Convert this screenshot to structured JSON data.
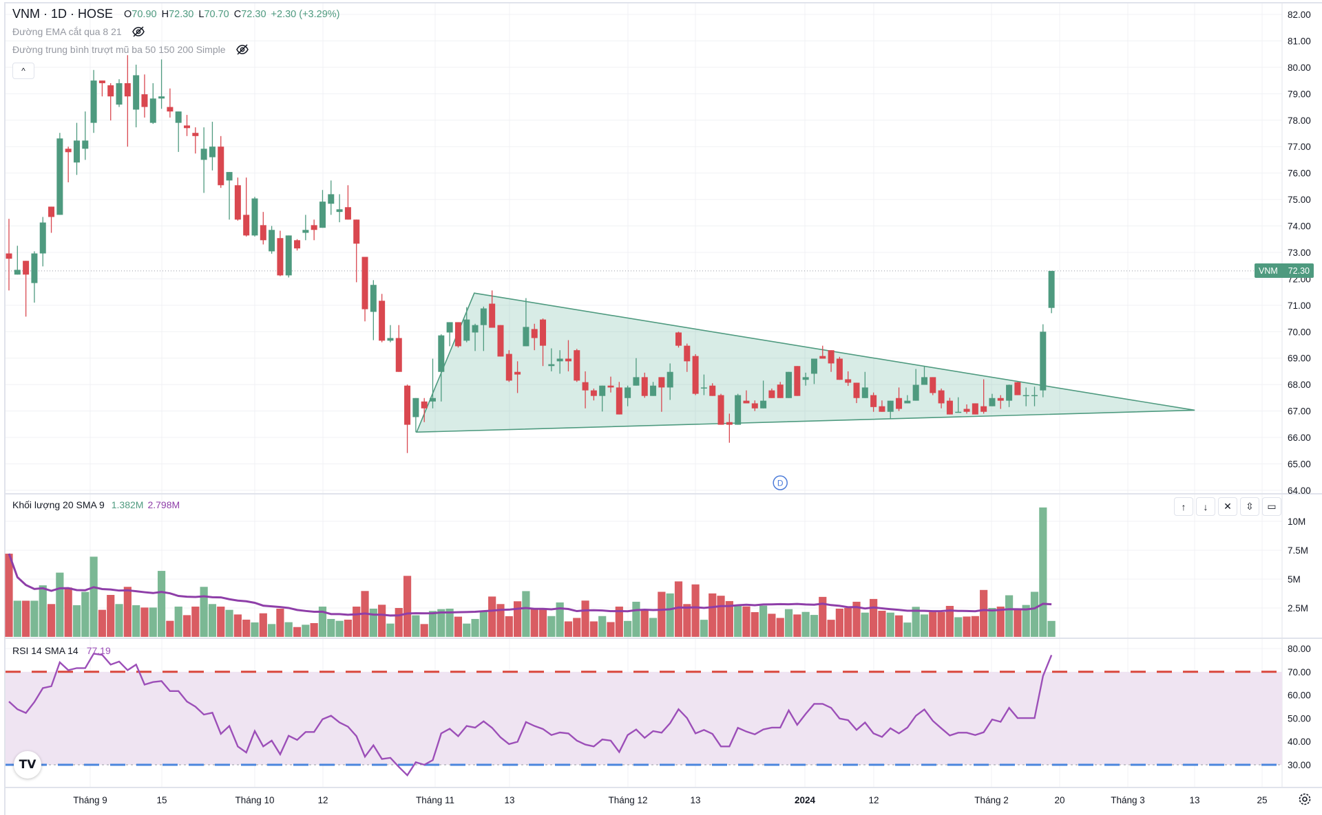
{
  "header": {
    "symbol_title": "VNM · 1D · HOSE",
    "ohlc": [
      {
        "key": "O",
        "value": "70.90"
      },
      {
        "key": "H",
        "value": "72.30"
      },
      {
        "key": "L",
        "value": "70.70"
      },
      {
        "key": "C",
        "value": "72.30"
      }
    ],
    "change": "+2.30 (+3.29%)",
    "indicators": [
      {
        "label": "Đường EMA cắt qua 8 21",
        "icon": "eye-off-icon"
      },
      {
        "label": "Đường trung bình trượt mũ ba 50 150 200 Simple",
        "icon": "eye-off-icon"
      }
    ],
    "collapse_icon": "^"
  },
  "last_price": {
    "symbol": "VNM",
    "value": "72.30"
  },
  "volume_pane": {
    "label": "Khối lượng 20 SMA 9",
    "value": "1.382M",
    "sma_value": "2.798M",
    "buttons": [
      {
        "name": "move-up",
        "glyph": "↑"
      },
      {
        "name": "move-down",
        "glyph": "↓"
      },
      {
        "name": "close",
        "glyph": "✕"
      },
      {
        "name": "collapse",
        "glyph": "⇳"
      },
      {
        "name": "maximize",
        "glyph": "▭"
      }
    ]
  },
  "rsi_pane": {
    "label": "RSI 14 SMA 14",
    "value": "77.19"
  },
  "dividend_marker": "D",
  "logo": "TV",
  "colors": {
    "up": "#4e9a7f",
    "down": "#d9474f",
    "vol_up": "#7bb894",
    "vol_down": "#d95c62",
    "sma": "#8e3ea8",
    "rsi": "#9c4fb8",
    "rsi_band": "#efe4f2",
    "rsi_upper": "#d9473c",
    "rsi_lower": "#4b86dd",
    "triangle_fill": "rgba(78,170,140,0.22)",
    "triangle_stroke": "#4e9a7f"
  },
  "chart_data": {
    "type": "candlestick",
    "symbol": "VNM",
    "interval": "1D",
    "exchange": "HOSE",
    "price_axis": {
      "ticks": [
        "82.00",
        "81.00",
        "80.00",
        "79.00",
        "78.00",
        "77.00",
        "76.00",
        "75.00",
        "74.00",
        "73.00",
        "72.00",
        "71.00",
        "70.00",
        "69.00",
        "68.00",
        "67.00",
        "66.00",
        "65.00",
        "64.00"
      ],
      "ylim": [
        64,
        82
      ]
    },
    "volume_axis": {
      "ticks": [
        "10M",
        "7.5M",
        "5M",
        "2.5M"
      ]
    },
    "rsi_axis": {
      "ticks": [
        "80.00",
        "70.00",
        "60.00",
        "50.00",
        "40.00",
        "30.00"
      ],
      "upper_band": 70,
      "lower_band": 30
    },
    "time_axis": [
      "Tháng 9",
      "15",
      "Tháng 10",
      "12",
      "Tháng 11",
      "13",
      "Tháng 12",
      "13",
      "2024",
      "12",
      "Tháng 2",
      "20",
      "Tháng 3",
      "13",
      "25"
    ],
    "grid": true,
    "ohlc": [
      [
        72.96,
        74.27,
        71.56,
        72.76
      ],
      [
        72.16,
        73.25,
        72.16,
        72.34
      ],
      [
        72.68,
        72.68,
        70.57,
        72.16
      ],
      [
        71.84,
        73.04,
        71.1,
        72.96
      ],
      [
        72.96,
        74.34,
        72.47,
        74.13
      ],
      [
        74.73,
        74.73,
        73.74,
        74.34
      ],
      [
        74.42,
        77.52,
        74.42,
        77.31
      ],
      [
        76.92,
        77.0,
        75.65,
        76.79
      ],
      [
        76.4,
        77.9,
        75.93,
        77.23
      ],
      [
        76.92,
        78.33,
        76.5,
        77.23
      ],
      [
        77.9,
        79.9,
        77.52,
        79.5
      ],
      [
        79.5,
        79.5,
        78.9,
        79.4
      ],
      [
        79.32,
        79.4,
        77.99,
        78.9
      ],
      [
        78.59,
        79.55,
        78.5,
        79.4
      ],
      [
        79.4,
        80.46,
        77.0,
        78.9
      ],
      [
        78.4,
        80.1,
        77.73,
        79.7
      ],
      [
        78.98,
        79.73,
        78.1,
        78.5
      ],
      [
        77.9,
        79.4,
        77.86,
        78.82
      ],
      [
        78.82,
        80.3,
        78.43,
        78.9
      ],
      [
        78.5,
        79.2,
        78.1,
        78.33
      ],
      [
        77.9,
        78.33,
        76.8,
        78.33
      ],
      [
        77.8,
        78.2,
        77.4,
        77.7
      ],
      [
        77.52,
        77.73,
        76.74,
        77.4
      ],
      [
        76.5,
        77.73,
        75.25,
        76.92
      ],
      [
        76.6,
        77.94,
        76.1,
        77.0
      ],
      [
        77.0,
        77.4,
        75.44,
        75.54
      ],
      [
        75.72,
        76.04,
        74.24,
        76.04
      ],
      [
        75.54,
        75.83,
        74.2,
        74.24
      ],
      [
        74.42,
        75.83,
        73.6,
        73.64
      ],
      [
        73.64,
        75.1,
        73.6,
        75.04
      ],
      [
        74.03,
        74.53,
        73.3,
        73.46
      ],
      [
        73.04,
        74.0,
        72.95,
        73.85
      ],
      [
        73.54,
        73.82,
        72.1,
        72.13
      ],
      [
        72.13,
        73.64,
        72.05,
        73.64
      ],
      [
        73.46,
        73.5,
        73.07,
        73.15
      ],
      [
        73.74,
        74.42,
        73.46,
        73.85
      ],
      [
        74.03,
        74.24,
        73.46,
        73.85
      ],
      [
        73.93,
        75.36,
        73.93,
        74.92
      ],
      [
        74.84,
        75.72,
        74.42,
        75.2
      ],
      [
        74.53,
        75.2,
        74.14,
        74.63
      ],
      [
        74.71,
        75.54,
        74.24,
        74.24
      ],
      [
        74.24,
        74.24,
        71.87,
        73.33
      ],
      [
        72.83,
        72.83,
        70.39,
        70.85
      ],
      [
        70.75,
        71.95,
        69.68,
        71.77
      ],
      [
        71.17,
        71.43,
        69.6,
        69.66
      ],
      [
        69.66,
        70.25,
        69.6,
        69.76
      ],
      [
        69.76,
        70.25,
        68.48,
        68.48
      ],
      [
        67.96,
        68.0,
        65.41,
        66.48
      ],
      [
        66.77,
        67.49,
        66.2,
        67.49
      ],
      [
        67.36,
        67.49,
        66.58,
        67.1
      ],
      [
        67.36,
        68.98,
        67.1,
        67.49
      ],
      [
        68.48,
        69.9,
        67.36,
        69.86
      ],
      [
        69.97,
        70.36,
        69.45,
        70.36
      ],
      [
        70.36,
        70.36,
        69.4,
        69.45
      ],
      [
        69.66,
        70.93,
        69.6,
        70.46
      ],
      [
        69.97,
        70.3,
        69.27,
        70.25
      ],
      [
        70.25,
        70.95,
        69.27,
        70.88
      ],
      [
        71.06,
        71.56,
        70.15,
        70.15
      ],
      [
        70.25,
        70.25,
        69.06,
        69.06
      ],
      [
        69.16,
        69.3,
        68.1,
        68.15
      ],
      [
        68.48,
        68.88,
        67.68,
        68.38
      ],
      [
        69.45,
        71.27,
        69.45,
        70.18
      ],
      [
        70.1,
        70.3,
        69.3,
        69.76
      ],
      [
        70.46,
        70.5,
        68.7,
        69.47
      ],
      [
        68.7,
        69.37,
        68.5,
        68.77
      ],
      [
        68.88,
        69.3,
        68.41,
        68.98
      ],
      [
        68.98,
        69.68,
        68.5,
        68.88
      ],
      [
        69.3,
        69.35,
        68.1,
        68.15
      ],
      [
        68.09,
        68.5,
        67.1,
        67.78
      ],
      [
        67.78,
        67.85,
        67.4,
        67.57
      ],
      [
        67.57,
        67.96,
        66.98,
        67.96
      ],
      [
        67.96,
        68.3,
        67.7,
        67.89
      ],
      [
        67.89,
        68.1,
        66.87,
        66.87
      ],
      [
        67.49,
        67.96,
        67.18,
        67.89
      ],
      [
        67.96,
        69.0,
        67.96,
        68.28
      ],
      [
        68.28,
        68.45,
        67.5,
        67.57
      ],
      [
        67.57,
        68.1,
        67.57,
        67.96
      ],
      [
        68.28,
        68.28,
        66.97,
        67.89
      ],
      [
        67.89,
        68.8,
        67.42,
        68.48
      ],
      [
        69.97,
        70.0,
        69.4,
        69.47
      ],
      [
        69.47,
        69.55,
        68.48,
        68.88
      ],
      [
        69.08,
        69.15,
        67.6,
        67.65
      ],
      [
        67.86,
        68.38,
        67.6,
        67.89
      ],
      [
        67.96,
        68.05,
        67.57,
        67.57
      ],
      [
        67.6,
        67.65,
        66.48,
        66.48
      ],
      [
        66.58,
        66.9,
        65.8,
        66.48
      ],
      [
        66.48,
        67.65,
        66.48,
        67.6
      ],
      [
        67.39,
        67.78,
        67.29,
        67.29
      ],
      [
        67.29,
        67.4,
        67.0,
        67.1
      ],
      [
        67.1,
        68.15,
        67.1,
        67.39
      ],
      [
        67.78,
        67.85,
        67.49,
        67.49
      ],
      [
        68.0,
        68.1,
        67.49,
        67.49
      ],
      [
        67.49,
        68.48,
        67.49,
        68.48
      ],
      [
        68.7,
        68.7,
        67.57,
        67.57
      ],
      [
        68.18,
        68.45,
        67.96,
        68.28
      ],
      [
        68.41,
        68.98,
        68.02,
        68.98
      ],
      [
        69.08,
        69.47,
        68.98,
        68.98
      ],
      [
        69.3,
        69.3,
        68.48,
        68.8
      ],
      [
        68.98,
        69.05,
        68.18,
        68.18
      ],
      [
        68.2,
        68.5,
        67.95,
        68.07
      ],
      [
        68.07,
        68.07,
        67.3,
        67.49
      ],
      [
        67.49,
        68.48,
        67.49,
        67.89
      ],
      [
        67.6,
        67.7,
        66.97,
        67.15
      ],
      [
        67.18,
        67.4,
        66.97,
        66.97
      ],
      [
        66.97,
        67.39,
        66.7,
        67.39
      ],
      [
        67.49,
        67.89,
        67.0,
        67.08
      ],
      [
        67.29,
        67.6,
        67.29,
        67.39
      ],
      [
        67.39,
        68.59,
        67.39,
        67.99
      ],
      [
        67.99,
        68.69,
        67.99,
        68.28
      ],
      [
        68.28,
        68.28,
        67.6,
        67.68
      ],
      [
        67.78,
        67.85,
        67.1,
        67.29
      ],
      [
        67.39,
        67.5,
        66.87,
        66.87
      ],
      [
        66.95,
        67.52,
        66.95,
        66.97
      ],
      [
        67.08,
        67.25,
        66.9,
        66.97
      ],
      [
        67.29,
        67.29,
        66.87,
        66.87
      ],
      [
        67.18,
        68.2,
        66.9,
        66.97
      ],
      [
        67.18,
        67.65,
        67.18,
        67.49
      ],
      [
        67.49,
        67.6,
        67.08,
        67.39
      ],
      [
        67.39,
        68.0,
        67.15,
        67.99
      ],
      [
        68.09,
        68.1,
        67.6,
        67.6
      ],
      [
        67.6,
        67.89,
        67.18,
        67.6
      ],
      [
        67.6,
        67.92,
        67.18,
        67.6
      ],
      [
        67.78,
        70.28,
        67.52,
        70.0
      ],
      [
        70.9,
        72.3,
        70.7,
        72.3
      ]
    ],
    "volume_millions": [
      7.2,
      3.13,
      3.13,
      3.13,
      4.46,
      2.84,
      5.56,
      4.27,
      2.74,
      3.89,
      6.94,
      2.34,
      3.63,
      2.84,
      4.33,
      2.74,
      2.54,
      2.54,
      5.71,
      1.39,
      2.62,
      1.88,
      2.62,
      4.33,
      2.84,
      2.62,
      2.34,
      1.94,
      1.49,
      1.25,
      2.04,
      1.11,
      2.44,
      1.27,
      0.85,
      1.05,
      1.19,
      2.62,
      1.55,
      1.39,
      1.49,
      2.62,
      3.97,
      2.44,
      2.78,
      1.15,
      2.5,
      5.28,
      1.87,
      1.11,
      2.24,
      2.4,
      2.44,
      1.75,
      1.15,
      1.55,
      2.24,
      3.49,
      2.84,
      1.79,
      3.08,
      3.96,
      2.46,
      2.46,
      1.8,
      2.98,
      1.34,
      1.64,
      3.14,
      1.34,
      1.8,
      1.28,
      2.62,
      1.38,
      3.04,
      2.4,
      1.64,
      3.9,
      3.76,
      4.8,
      2.84,
      4.54,
      1.48,
      3.76,
      3.56,
      3.1,
      2.7,
      2.64,
      2.14,
      2.7,
      2.0,
      1.64,
      2.4,
      1.94,
      2.16,
      1.9,
      3.46,
      1.48,
      2.44,
      2.5,
      3.04,
      2.1,
      3.28,
      2.26,
      2.1,
      1.86,
      1.24,
      2.6,
      1.94,
      2.14,
      2.14,
      2.68,
      1.7,
      1.76,
      1.8,
      4.06,
      2.5,
      2.62,
      3.6,
      2.4,
      2.76,
      3.9,
      11.2,
      1.38
    ],
    "rsi": [
      57.2,
      53.9,
      52.3,
      57,
      63,
      63.8,
      74.1,
      70.7,
      71.6,
      71.6,
      77.8,
      77.3,
      73.1,
      74.4,
      70.7,
      73.1,
      64.5,
      65.6,
      66,
      61.7,
      61.7,
      57.2,
      55,
      51.6,
      52.4,
      43.3,
      46.7,
      37.9,
      35.3,
      44.5,
      37.9,
      40.4,
      34.5,
      42.5,
      40.7,
      44.1,
      44.1,
      49.6,
      51.1,
      48.2,
      46.4,
      42.3,
      33.5,
      38.4,
      32.5,
      33,
      29.1,
      25.5,
      31.1,
      30,
      32,
      43.5,
      45.5,
      42.3,
      46.7,
      46,
      48.7,
      45.9,
      41.8,
      38.9,
      39.9,
      48.4,
      46.7,
      45.4,
      42.8,
      43.9,
      43.5,
      40.4,
      38.7,
      37.9,
      40.9,
      40.4,
      35.5,
      42.8,
      45.2,
      41.6,
      44.5,
      43.8,
      47.9,
      53.9,
      50.1,
      43.5,
      45,
      43.3,
      37.9,
      37.9,
      45.9,
      44.3,
      43.1,
      45.2,
      46,
      46,
      53.4,
      47.2,
      51.9,
      56.2,
      56.2,
      54.5,
      49.9,
      49.2,
      45,
      48.2,
      43.5,
      42,
      45.7,
      43.5,
      46,
      51.1,
      53.8,
      48.9,
      45.7,
      42.6,
      43.8,
      43.8,
      42.8,
      44,
      49.5,
      48.5,
      54.5,
      50.1,
      50.1,
      50.1,
      68.2,
      77.19
    ],
    "drawings": [
      {
        "type": "triangle",
        "points_bar_price": [
          [
            49.1,
            66.2
          ],
          [
            55.9,
            71.46
          ],
          [
            140.9,
            67.03
          ]
        ]
      }
    ],
    "dividend_bar": 92,
    "last_close": 72.3
  }
}
